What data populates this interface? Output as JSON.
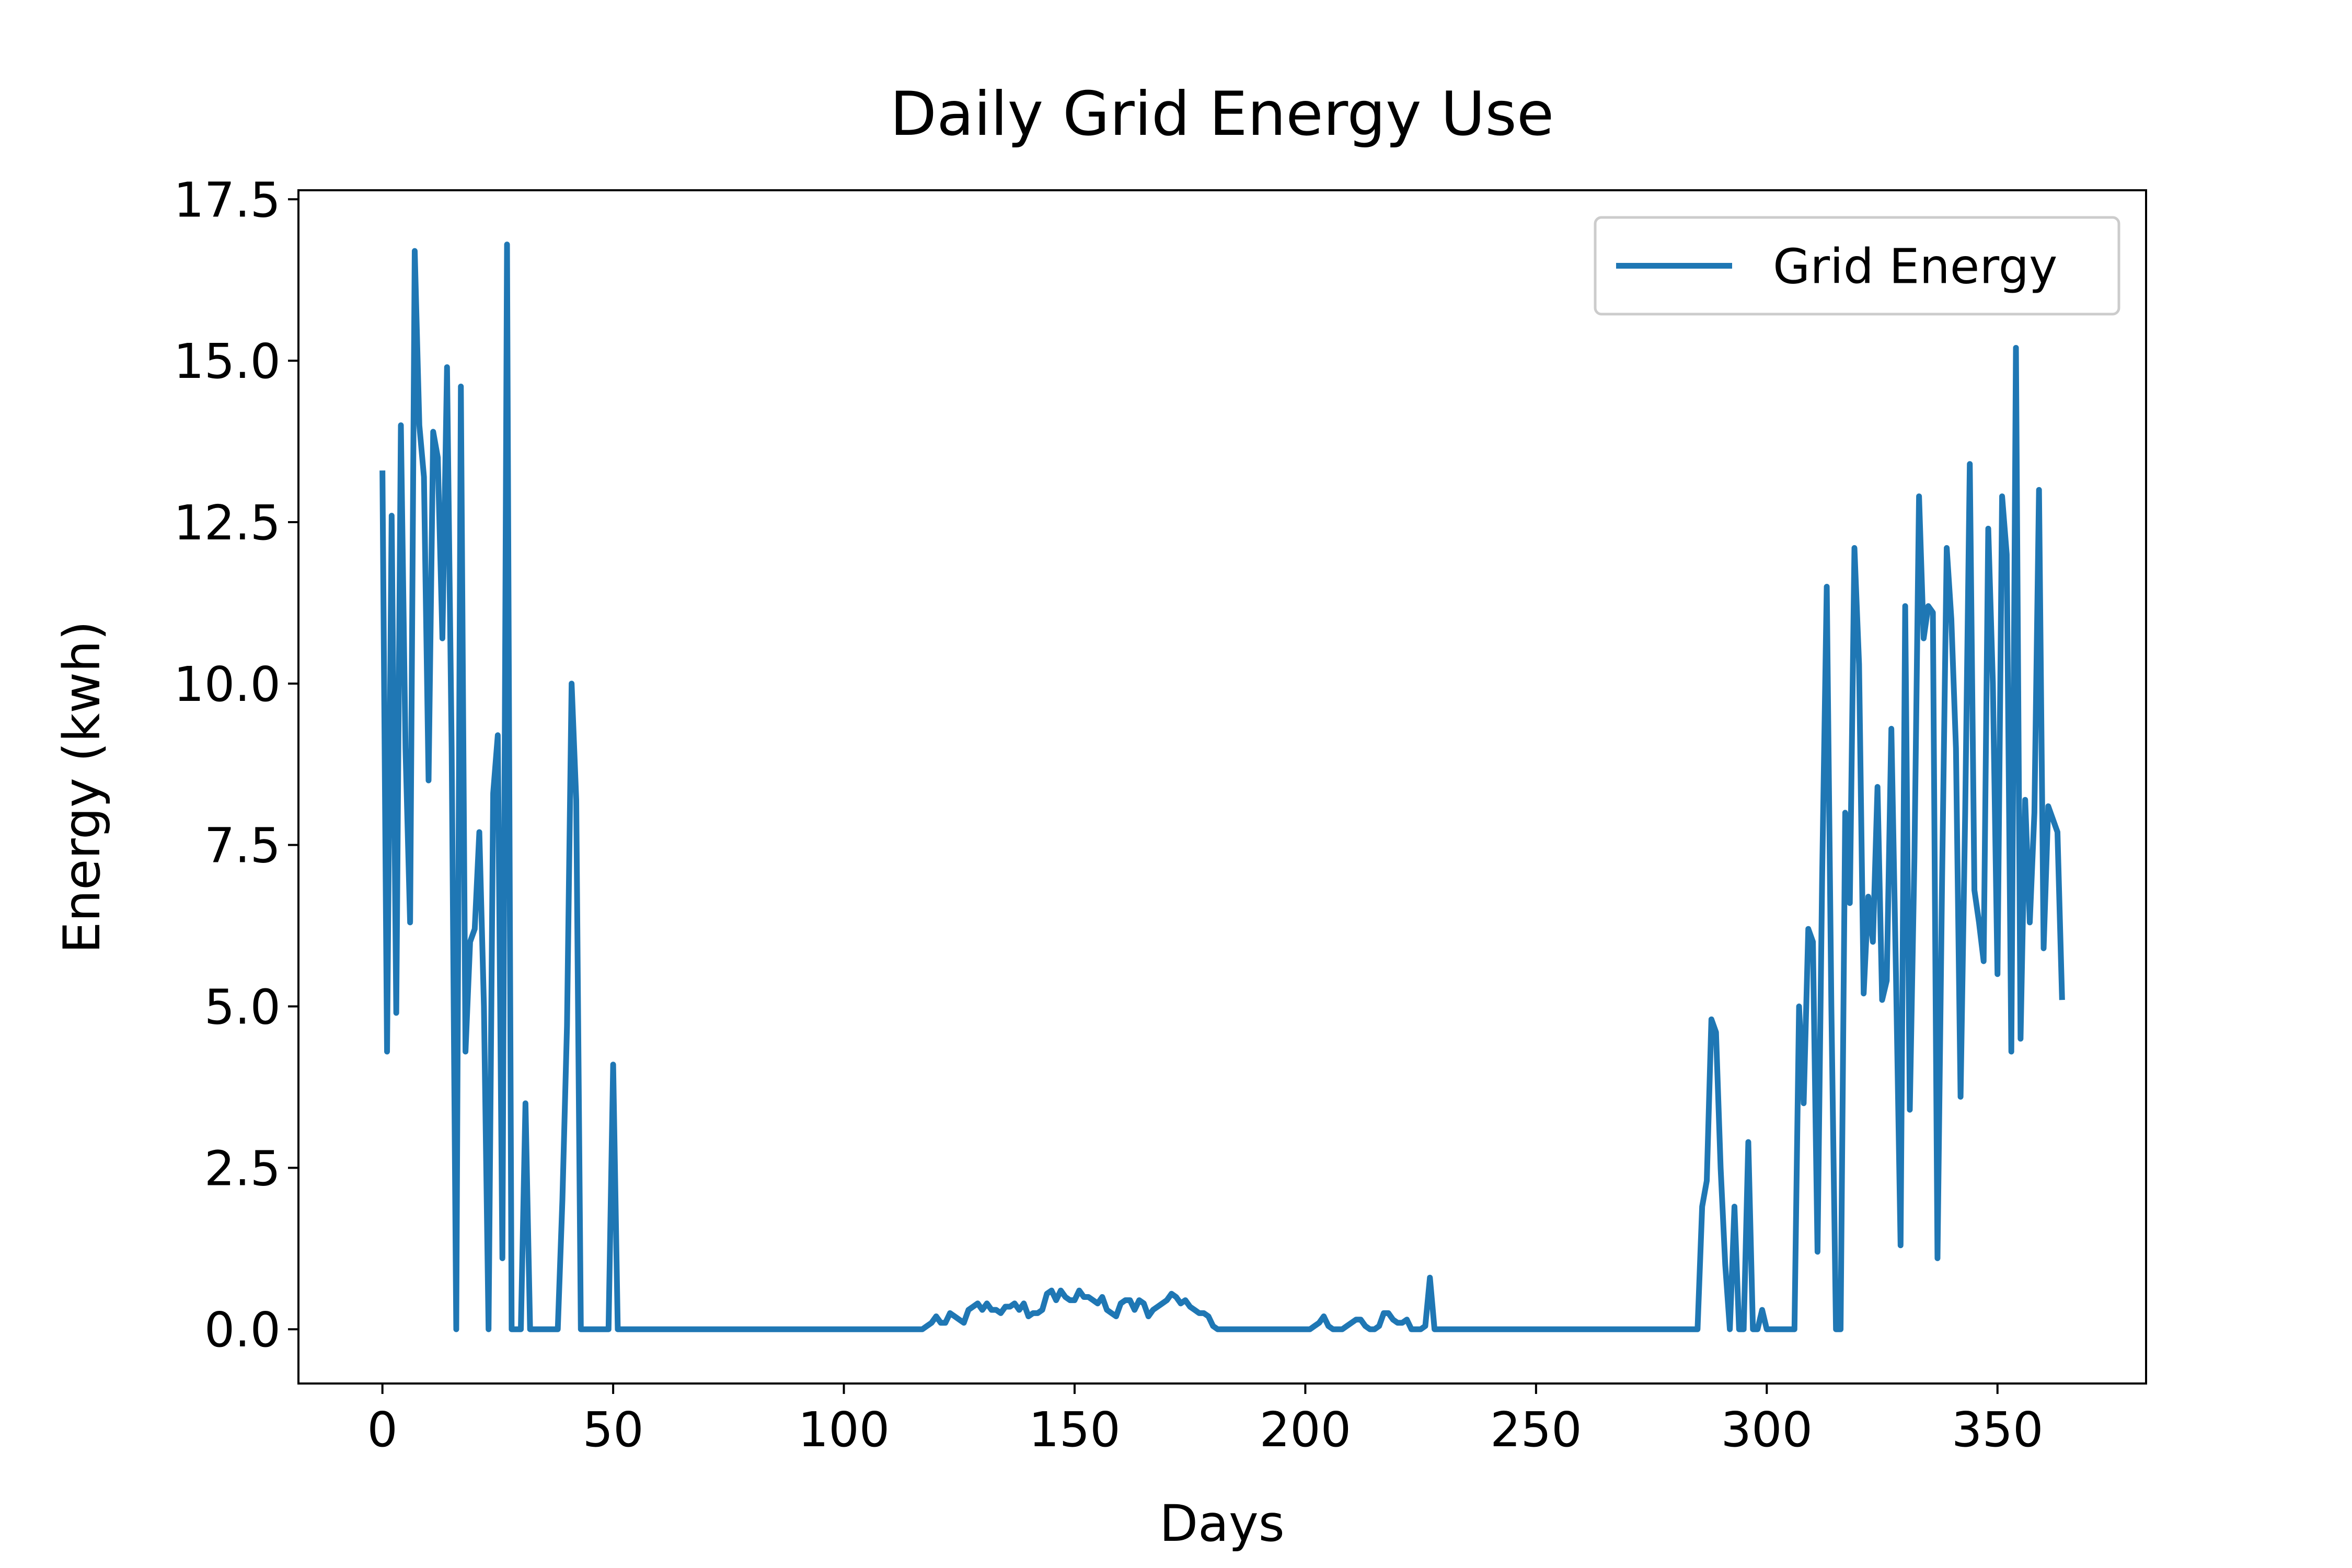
{
  "chart_data": {
    "type": "line",
    "title": "Daily Grid Energy Use",
    "x_label": "Days",
    "y_label": "Energy (kwh)",
    "legend": "upper right",
    "grid": false,
    "xlim": [
      -18.2,
      382.2
    ],
    "ylim": [
      -0.84,
      17.64
    ],
    "xticks": [
      0,
      50,
      100,
      150,
      200,
      250,
      300,
      350
    ],
    "yticks": [
      {
        "value": 0,
        "label": "0.0"
      },
      2.5,
      {
        "value": 5,
        "label": "5.0"
      },
      7.5,
      {
        "value": 10,
        "label": "10.0"
      },
      12.5,
      {
        "value": 15,
        "label": "15.0"
      },
      17.5
    ],
    "x": [
      0,
      1,
      2,
      3,
      4,
      5,
      6,
      7,
      8,
      9,
      10,
      11,
      12,
      13,
      14,
      15,
      16,
      17,
      18,
      19,
      20,
      21,
      22,
      23,
      24,
      25,
      26,
      27,
      28,
      29,
      30,
      31,
      32,
      33,
      34,
      35,
      36,
      37,
      38,
      39,
      40,
      41,
      42,
      43,
      44,
      45,
      46,
      47,
      48,
      49,
      50,
      51,
      52,
      53,
      54,
      55,
      56,
      57,
      58,
      59,
      60,
      61,
      62,
      63,
      64,
      65,
      66,
      67,
      68,
      69,
      70,
      71,
      72,
      73,
      74,
      75,
      76,
      77,
      78,
      79,
      80,
      81,
      82,
      83,
      84,
      85,
      86,
      87,
      88,
      89,
      90,
      91,
      92,
      93,
      94,
      95,
      96,
      97,
      98,
      99,
      100,
      101,
      102,
      103,
      104,
      105,
      106,
      107,
      108,
      109,
      110,
      111,
      112,
      113,
      114,
      115,
      116,
      117,
      118,
      119,
      120,
      121,
      122,
      123,
      124,
      125,
      126,
      127,
      128,
      129,
      130,
      131,
      132,
      133,
      134,
      135,
      136,
      137,
      138,
      139,
      140,
      141,
      142,
      143,
      144,
      145,
      146,
      147,
      148,
      149,
      150,
      151,
      152,
      153,
      154,
      155,
      156,
      157,
      158,
      159,
      160,
      161,
      162,
      163,
      164,
      165,
      166,
      167,
      168,
      169,
      170,
      171,
      172,
      173,
      174,
      175,
      176,
      177,
      178,
      179,
      180,
      181,
      182,
      183,
      184,
      185,
      186,
      187,
      188,
      189,
      190,
      191,
      192,
      193,
      194,
      195,
      196,
      197,
      198,
      199,
      200,
      201,
      202,
      203,
      204,
      205,
      206,
      207,
      208,
      209,
      210,
      211,
      212,
      213,
      214,
      215,
      216,
      217,
      218,
      219,
      220,
      221,
      222,
      223,
      224,
      225,
      226,
      227,
      228,
      229,
      230,
      231,
      232,
      233,
      234,
      235,
      236,
      237,
      238,
      239,
      240,
      241,
      242,
      243,
      244,
      245,
      246,
      247,
      248,
      249,
      250,
      251,
      252,
      253,
      254,
      255,
      256,
      257,
      258,
      259,
      260,
      261,
      262,
      263,
      264,
      265,
      266,
      267,
      268,
      269,
      270,
      271,
      272,
      273,
      274,
      275,
      276,
      277,
      278,
      279,
      280,
      281,
      282,
      283,
      284,
      285,
      286,
      287,
      288,
      289,
      290,
      291,
      292,
      293,
      294,
      295,
      296,
      297,
      298,
      299,
      300,
      301,
      302,
      303,
      304,
      305,
      306,
      307,
      308,
      309,
      310,
      311,
      312,
      313,
      314,
      315,
      316,
      317,
      318,
      319,
      320,
      321,
      322,
      323,
      324,
      325,
      326,
      327,
      328,
      329,
      330,
      331,
      332,
      333,
      334,
      335,
      336,
      337,
      338,
      339,
      340,
      341,
      342,
      343,
      344,
      345,
      346,
      347,
      348,
      349,
      350,
      351,
      352,
      353,
      354,
      355,
      356,
      357,
      358,
      359,
      360,
      361,
      362,
      363,
      364
    ],
    "series": [
      {
        "name": "Grid Energy",
        "color": "#1f77b4",
        "values": [
          13.3,
          4.3,
          12.6,
          4.9,
          14.0,
          9.0,
          6.3,
          16.7,
          14.0,
          13.2,
          8.5,
          13.9,
          13.5,
          10.7,
          14.9,
          9.0,
          0,
          14.6,
          4.3,
          6.0,
          6.2,
          7.7,
          5.0,
          0,
          8.3,
          9.2,
          1.1,
          16.8,
          0,
          0,
          0,
          3.5,
          0,
          0,
          0,
          0,
          0,
          0,
          0,
          2.0,
          4.7,
          10.0,
          8.2,
          0,
          0,
          0,
          0,
          0,
          0,
          0,
          4.1,
          0,
          0,
          0,
          0,
          0,
          0,
          0,
          0,
          0,
          0,
          0,
          0,
          0,
          0,
          0,
          0,
          0,
          0,
          0,
          0,
          0,
          0,
          0,
          0,
          0,
          0,
          0,
          0,
          0,
          0,
          0,
          0,
          0,
          0,
          0,
          0,
          0,
          0,
          0,
          0,
          0,
          0,
          0,
          0,
          0,
          0,
          0,
          0,
          0,
          0,
          0,
          0,
          0,
          0,
          0,
          0,
          0,
          0,
          0,
          0,
          0,
          0,
          0,
          0,
          0,
          0,
          0,
          0.05,
          0.1,
          0.2,
          0.1,
          0.1,
          0.25,
          0.2,
          0.15,
          0.1,
          0.3,
          0.35,
          0.4,
          0.3,
          0.4,
          0.3,
          0.3,
          0.25,
          0.35,
          0.35,
          0.4,
          0.3,
          0.4,
          0.2,
          0.25,
          0.25,
          0.3,
          0.55,
          0.6,
          0.45,
          0.6,
          0.5,
          0.45,
          0.45,
          0.6,
          0.5,
          0.5,
          0.45,
          0.4,
          0.5,
          0.3,
          0.25,
          0.2,
          0.4,
          0.45,
          0.45,
          0.3,
          0.45,
          0.4,
          0.2,
          0.3,
          0.35,
          0.4,
          0.45,
          0.55,
          0.5,
          0.4,
          0.45,
          0.35,
          0.3,
          0.25,
          0.25,
          0.2,
          0.05,
          0,
          0,
          0,
          0,
          0,
          0,
          0,
          0,
          0,
          0,
          0,
          0,
          0,
          0,
          0,
          0,
          0,
          0,
          0,
          0,
          0,
          0.05,
          0.1,
          0.2,
          0.05,
          0,
          0,
          0,
          0.05,
          0.1,
          0.15,
          0.15,
          0.05,
          0,
          0,
          0.05,
          0.25,
          0.25,
          0.15,
          0.1,
          0.1,
          0.15,
          0,
          0,
          0,
          0.05,
          0.8,
          0,
          0,
          0,
          0,
          0,
          0,
          0,
          0,
          0,
          0,
          0,
          0,
          0,
          0,
          0,
          0,
          0,
          0,
          0,
          0,
          0,
          0,
          0,
          0,
          0,
          0,
          0,
          0,
          0,
          0,
          0,
          0,
          0,
          0,
          0,
          0,
          0,
          0,
          0,
          0,
          0,
          0,
          0,
          0,
          0,
          0,
          0,
          0,
          0,
          0,
          0,
          0,
          0,
          0,
          0,
          0,
          0,
          0,
          1.9,
          2.3,
          4.8,
          4.6,
          2.5,
          1.0,
          0,
          1.9,
          0,
          0,
          2.9,
          0,
          0,
          0.3,
          0,
          0,
          0,
          0,
          0,
          0,
          0,
          5.0,
          3.5,
          6.2,
          6.0,
          1.2,
          7.0,
          11.5,
          5.0,
          0,
          0,
          8.0,
          6.6,
          12.1,
          10.3,
          5.2,
          6.7,
          6.0,
          8.4,
          5.1,
          5.4,
          9.3,
          5.5,
          1.3,
          11.2,
          3.4,
          7.3,
          12.9,
          10.7,
          11.2,
          11.1,
          1.1,
          7.0,
          12.1,
          11.0,
          9.0,
          3.6,
          8.0,
          13.4,
          6.8,
          6.3,
          5.7,
          12.4,
          10.0,
          5.5,
          12.9,
          12.0,
          4.3,
          15.2,
          4.5,
          8.2,
          6.3,
          8.0,
          13.0,
          5.9,
          8.1,
          7.9,
          7.7,
          5.1
        ]
      }
    ]
  }
}
